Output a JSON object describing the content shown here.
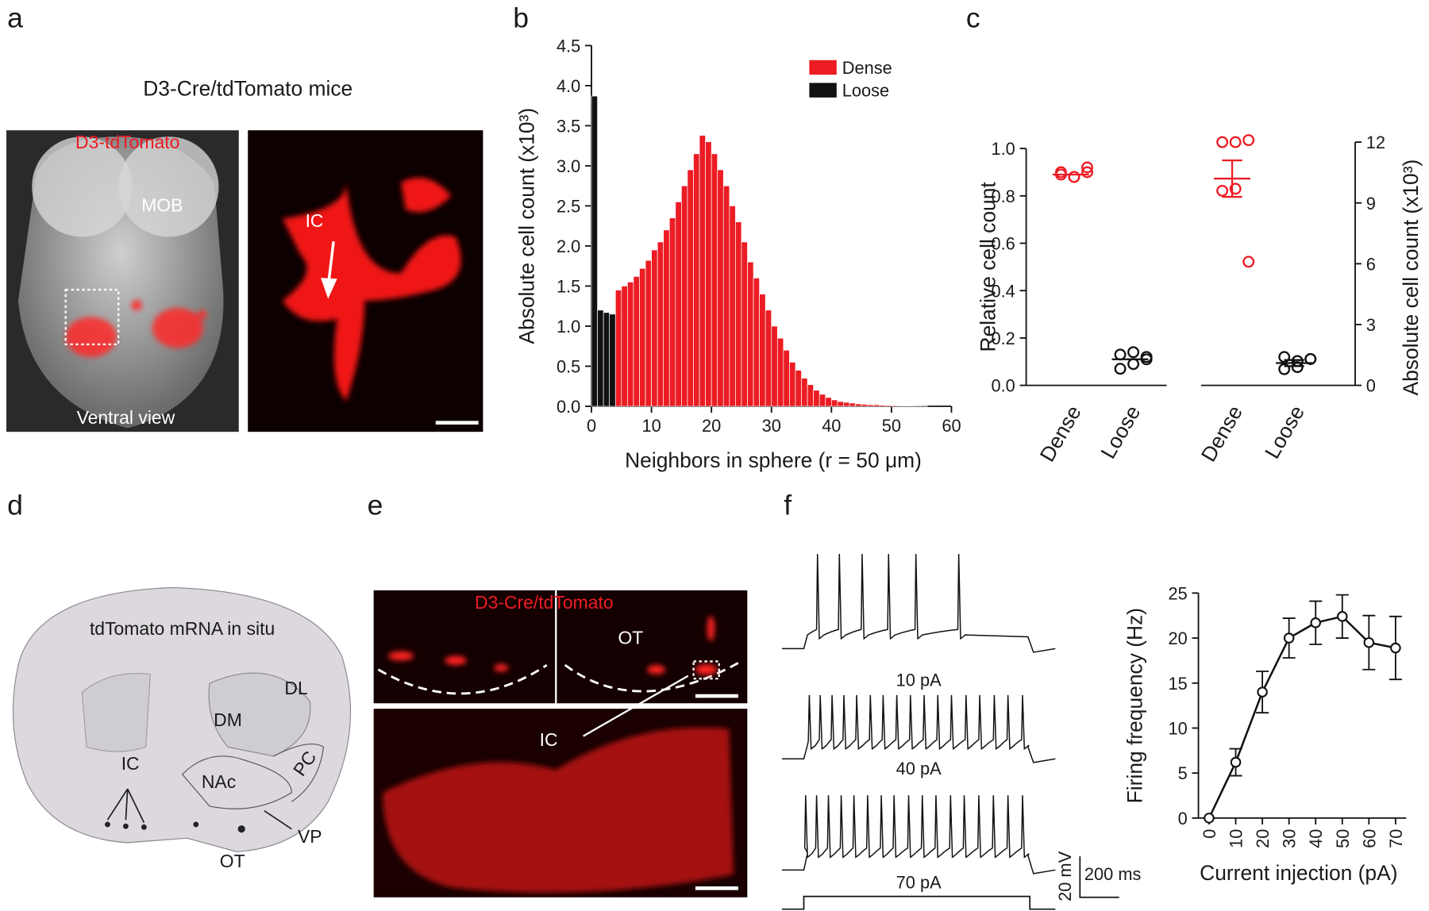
{
  "panels": [
    "a",
    "b",
    "c",
    "d",
    "e",
    "f"
  ],
  "panel_a": {
    "title": "D3-Cre/tdTomato mice",
    "labels": [
      "D3-tdTomato",
      "MOB",
      "Ventral view",
      "IC"
    ]
  },
  "panel_d": {
    "labels": [
      "tdTomato mRNA in situ",
      "DL",
      "DM",
      "IC",
      "NAc",
      "PC",
      "VP",
      "OT"
    ]
  },
  "panel_e": {
    "labels": [
      "D3-Cre/tdTomato",
      "OT",
      "IC"
    ]
  },
  "panel_f": {
    "traces": [
      "10 pA",
      "40 pA",
      "70 pA"
    ],
    "scale_bar": [
      "20 mV",
      "200 ms"
    ]
  },
  "chart_data": [
    {
      "type": "histogram",
      "xlabel": "Neighbors in sphere (r = 50 μm)",
      "ylabel": "Absolute cell count (x10³)",
      "bins": [
        0,
        1,
        2,
        3,
        4,
        5,
        6,
        7,
        8,
        9,
        10,
        11,
        12,
        13,
        14,
        15,
        16,
        17,
        18,
        19,
        20,
        21,
        22,
        23,
        24,
        25,
        26,
        27,
        28,
        29,
        30,
        31,
        32,
        33,
        34,
        35,
        36,
        37,
        38,
        39,
        40,
        41,
        42,
        43,
        44,
        45,
        46,
        47,
        48,
        49,
        50,
        51,
        52,
        53,
        54,
        55,
        56
      ],
      "series": [
        {
          "name": "Dense",
          "color": "#ec1c24",
          "values": [
            null,
            null,
            null,
            null,
            1.45,
            1.5,
            1.55,
            1.62,
            1.72,
            1.82,
            1.95,
            2.05,
            2.2,
            2.35,
            2.55,
            2.75,
            2.95,
            3.15,
            3.38,
            3.3,
            3.15,
            2.95,
            2.75,
            2.5,
            2.3,
            2.05,
            1.8,
            1.6,
            1.4,
            1.2,
            1.0,
            0.85,
            0.7,
            0.55,
            0.45,
            0.35,
            0.27,
            0.2,
            0.15,
            0.11,
            0.08,
            0.06,
            0.05,
            0.04,
            0.03,
            0.025,
            0.02,
            0.02,
            0.015,
            0.012,
            0.01,
            0.008,
            0.006,
            0.005,
            0.004,
            0.003
          ]
        },
        {
          "name": "Loose",
          "color": "#111111",
          "values": [
            3.87,
            1.2,
            1.17,
            1.15,
            null,
            null,
            null,
            null,
            null,
            null,
            null,
            null,
            null,
            null,
            null,
            null,
            null,
            null,
            null,
            null,
            null,
            null,
            null,
            null,
            null,
            null,
            null,
            null,
            null,
            null,
            null,
            null,
            null,
            null,
            null,
            null,
            null,
            null,
            null,
            null,
            null,
            null,
            null,
            null,
            null,
            null,
            null,
            null,
            null,
            null,
            null,
            null,
            null,
            null,
            null,
            null
          ]
        }
      ],
      "xlim": [
        0,
        60
      ],
      "xticks": [
        0,
        10,
        20,
        30,
        40,
        50,
        60
      ],
      "ylim": [
        0,
        4.5
      ],
      "yticks": [
        {
          "value": 0,
          "label": "0.0"
        },
        0.5,
        {
          "value": 1,
          "label": "1.0"
        },
        1.5,
        {
          "value": 2,
          "label": "2.0"
        },
        2.5,
        {
          "value": 3,
          "label": "3.0"
        },
        3.5,
        {
          "value": 4,
          "label": "4.0"
        },
        4.5
      ],
      "legend": "upper right"
    },
    {
      "type": "scatter",
      "ylabel": "Relative cell count",
      "categories": [
        "Dense",
        "Loose"
      ],
      "colors": [
        "#ec1c24",
        "#111111"
      ],
      "values": [
        [
          0.92,
          0.9,
          0.88,
          0.88,
          0.89,
          0.9
        ],
        [
          0.11,
          0.13,
          0.14,
          0.09,
          0.07,
          0.12
        ]
      ],
      "means": [
        0.89,
        0.11
      ],
      "ylim": [
        0,
        1
      ],
      "yticks": [
        {
          "value": 0,
          "label": "0.0"
        },
        0.2,
        0.4,
        0.6,
        0.8,
        {
          "value": 1,
          "label": "1.0"
        }
      ],
      "axis_side": "left"
    },
    {
      "type": "scatter",
      "ylabel": "Absolute cell count (x10³)",
      "categories": [
        "Dense",
        "Loose"
      ],
      "colors": [
        "#ec1c24",
        "#111111"
      ],
      "values": [
        [
          12.1,
          12.0,
          12.0,
          9.7,
          9.6,
          6.1
        ],
        [
          1.3,
          1.4,
          1.2,
          0.9,
          0.8,
          1.3
        ]
      ],
      "means": [
        10.2,
        1.1
      ],
      "errors": [
        0.9,
        0.15
      ],
      "ylim": [
        0,
        12
      ],
      "yticks": [
        0,
        3,
        6,
        9,
        12
      ],
      "axis_side": "right"
    },
    {
      "type": "line",
      "xlabel": "Current injection (pA)",
      "ylabel": "Firing frequency (Hz)",
      "x": [
        0,
        10,
        20,
        30,
        40,
        50,
        60,
        70
      ],
      "values": [
        0,
        6.2,
        14,
        20,
        21.7,
        22.4,
        19.5,
        18.9
      ],
      "errors": [
        0,
        1.5,
        2.3,
        2.2,
        2.4,
        2.4,
        3,
        3.5
      ],
      "color": "#111111",
      "xlim": [
        -4,
        74
      ],
      "xticks": [
        0,
        10,
        20,
        30,
        40,
        50,
        60,
        70
      ],
      "ylim": [
        0,
        25
      ],
      "yticks": [
        0,
        5,
        10,
        15,
        20,
        25
      ]
    }
  ]
}
